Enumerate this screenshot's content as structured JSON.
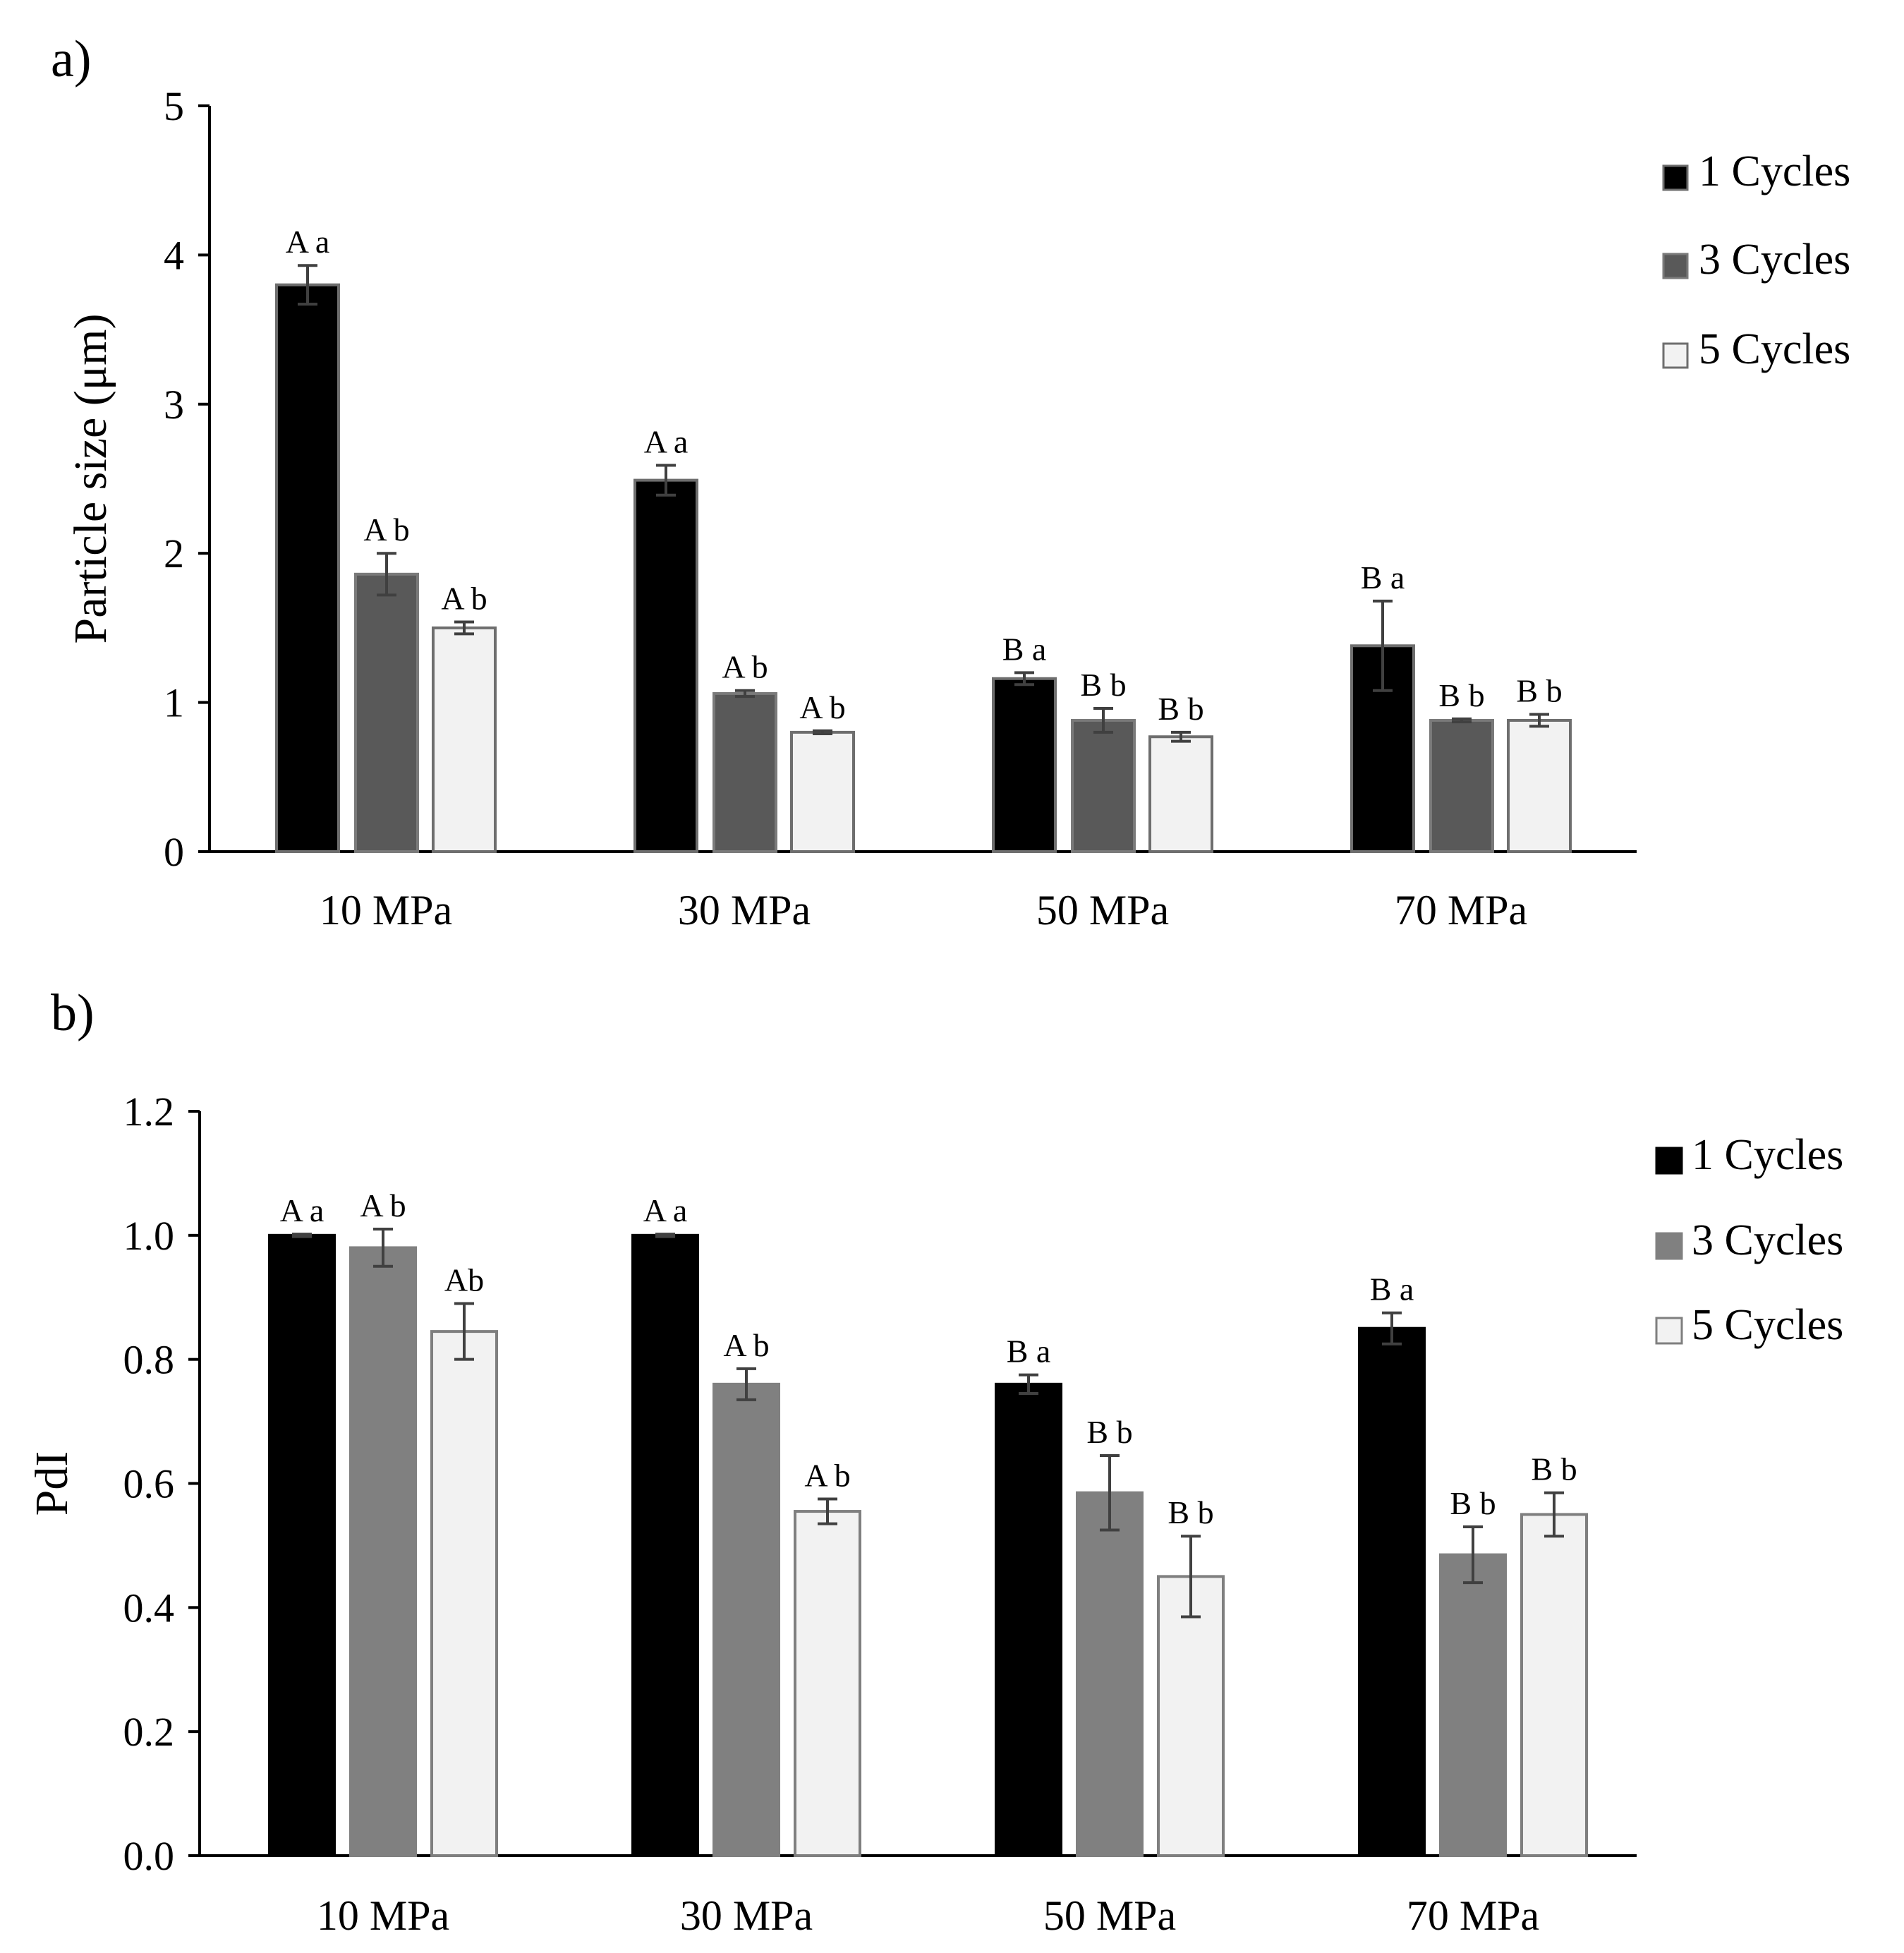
{
  "chart_data": [
    {
      "panel": "a)",
      "type": "bar",
      "title": "",
      "xlabel": "",
      "ylabel": "Particle size (μm)",
      "ylim": [
        0,
        5
      ],
      "yticks": [
        "0",
        "1",
        "2",
        "3",
        "4",
        "5"
      ],
      "categories": [
        "10 MPa",
        "30 MPa",
        "50 MPa",
        "70 MPa"
      ],
      "legend_position": "right",
      "series": [
        {
          "name": "1 Cycles",
          "color": "#000000",
          "stroke": "#6e6e6e",
          "values": [
            3.8,
            2.49,
            1.16,
            1.38
          ],
          "errors": [
            0.13,
            0.1,
            0.04,
            0.3
          ],
          "labels": [
            "A a",
            "A a",
            "B a",
            "B a"
          ]
        },
        {
          "name": "3 Cycles",
          "color": "#595959",
          "stroke": "#7a7a7a",
          "values": [
            1.86,
            1.06,
            0.88,
            0.88
          ],
          "errors": [
            0.14,
            0.02,
            0.08,
            0.01
          ],
          "labels": [
            "A b",
            "A b",
            "B b",
            "B b"
          ]
        },
        {
          "name": "5 Cycles",
          "color": "#f2f2f2",
          "stroke": "#6e6e6e",
          "values": [
            1.5,
            0.8,
            0.77,
            0.88
          ],
          "errors": [
            0.04,
            0.01,
            0.03,
            0.04
          ],
          "labels": [
            "A b",
            "A b",
            "B b",
            "B b"
          ]
        }
      ]
    },
    {
      "panel": "b)",
      "type": "bar",
      "title": "",
      "xlabel": "",
      "ylabel": "PdI",
      "ylim": [
        0,
        1.2
      ],
      "yticks": [
        "0.0",
        "0.2",
        "0.4",
        "0.6",
        "0.8",
        "1.0",
        "1.2"
      ],
      "categories": [
        "10 MPa",
        "30 MPa",
        "50 MPa",
        "70 MPa"
      ],
      "legend_position": "right",
      "series": [
        {
          "name": "1 Cycles",
          "color": "#000000",
          "stroke": "#000000",
          "values": [
            1.0,
            1.0,
            0.76,
            0.85
          ],
          "errors": [
            0.002,
            0.002,
            0.015,
            0.025
          ],
          "labels": [
            "A a",
            "A a",
            "B a",
            "B a"
          ]
        },
        {
          "name": "3 Cycles",
          "color": "#808080",
          "stroke": "#808080",
          "values": [
            0.98,
            0.76,
            0.585,
            0.485
          ],
          "errors": [
            0.03,
            0.025,
            0.06,
            0.045
          ],
          "labels": [
            "A b",
            "A b",
            "B b",
            "B b"
          ]
        },
        {
          "name": "5 Cycles",
          "color": "#f2f2f2",
          "stroke": "#7f7f7f",
          "values": [
            0.845,
            0.555,
            0.45,
            0.55
          ],
          "errors": [
            0.045,
            0.02,
            0.065,
            0.035
          ],
          "labels": [
            "Ab",
            "A b",
            "B b",
            "B b"
          ]
        }
      ]
    }
  ]
}
